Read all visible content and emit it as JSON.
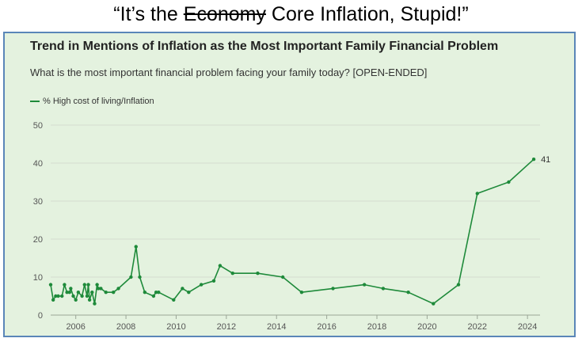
{
  "headline": {
    "prefix": "“It’s the ",
    "struck": "Economy",
    "suffix": " Core Inflation, Stupid!”"
  },
  "colors": {
    "line": "#1e8a3a",
    "panel": "#e4f2df",
    "border": "#5a86b8",
    "grid": "#d3dccf"
  },
  "chart_data": {
    "type": "line",
    "title": "Trend in Mentions of Inflation as the Most Important Family Financial Problem",
    "subtitle": "What is the most important financial problem facing your family today? [OPEN-ENDED]",
    "xlabel": "",
    "ylabel": "",
    "ylim": [
      0,
      50
    ],
    "xlim": [
      2005,
      2024.5
    ],
    "y_ticks": [
      "0",
      "10",
      "20",
      "30",
      "40",
      "50"
    ],
    "x_ticks": [
      "2006",
      "2008",
      "2010",
      "2012",
      "2014",
      "2016",
      "2018",
      "2020",
      "2022",
      "2024"
    ],
    "grid": "horizontal",
    "legend_position": "top-left",
    "series": [
      {
        "name": "% High cost of living/Inflation",
        "x": [
          2005.0,
          2005.1,
          2005.2,
          2005.3,
          2005.45,
          2005.55,
          2005.65,
          2005.75,
          2005.8,
          2005.9,
          2006.0,
          2006.1,
          2006.25,
          2006.35,
          2006.45,
          2006.5,
          2006.55,
          2006.65,
          2006.75,
          2006.85,
          2006.9,
          2007.0,
          2007.2,
          2007.5,
          2007.7,
          2008.2,
          2008.4,
          2008.55,
          2008.75,
          2009.1,
          2009.2,
          2009.3,
          2009.9,
          2010.25,
          2010.5,
          2011.0,
          2011.5,
          2011.75,
          2012.25,
          2013.25,
          2014.25,
          2015.0,
          2016.25,
          2017.5,
          2018.25,
          2019.25,
          2020.25,
          2021.25,
          2022.0,
          2023.25,
          2024.25
        ],
        "values": [
          8,
          4,
          5,
          5,
          5,
          8,
          6,
          6,
          7,
          5,
          4,
          6,
          5,
          8,
          5,
          8,
          4,
          6,
          3,
          8,
          7,
          7,
          6,
          6,
          7,
          10,
          18,
          10,
          6,
          5,
          6,
          6,
          4,
          7,
          6,
          8,
          9,
          13,
          11,
          11,
          10,
          6,
          7,
          8,
          7,
          6,
          3,
          8,
          32,
          35,
          41
        ]
      }
    ],
    "annotations": [
      {
        "x": 2024.25,
        "y": 41,
        "text": "41"
      }
    ]
  }
}
